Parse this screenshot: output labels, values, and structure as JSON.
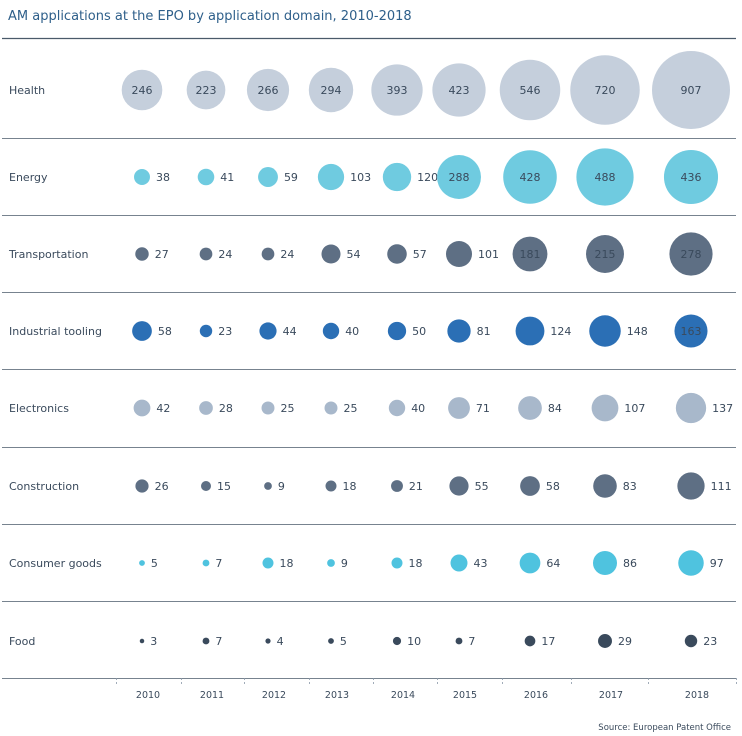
{
  "chart_data": {
    "type": "bubble",
    "title": "AM applications at the EPO by application domain, 2010-2018",
    "source": "Source: European Patent Office",
    "x": [
      "2010",
      "2011",
      "2012",
      "2013",
      "2014",
      "2015",
      "2016",
      "2017",
      "2018"
    ],
    "series": [
      {
        "name": "Health",
        "color": "#c5cfdc",
        "values": [
          246,
          223,
          266,
          294,
          393,
          423,
          546,
          720,
          907
        ]
      },
      {
        "name": "Energy",
        "color": "#6fcbe0",
        "values": [
          38,
          41,
          59,
          103,
          120,
          288,
          428,
          488,
          436
        ]
      },
      {
        "name": "Transportation",
        "color": "#5e6f84",
        "values": [
          27,
          24,
          24,
          54,
          57,
          101,
          181,
          215,
          278
        ]
      },
      {
        "name": "Industrial tooling",
        "color": "#2b6fb5",
        "values": [
          58,
          23,
          44,
          40,
          50,
          81,
          124,
          148,
          163
        ]
      },
      {
        "name": "Electronics",
        "color": "#a8b8cb",
        "values": [
          42,
          28,
          25,
          25,
          40,
          71,
          84,
          107,
          137
        ]
      },
      {
        "name": "Construction",
        "color": "#5e6f84",
        "values": [
          26,
          15,
          9,
          18,
          21,
          55,
          58,
          83,
          111
        ]
      },
      {
        "name": "Consumer goods",
        "color": "#4fc3df",
        "values": [
          5,
          7,
          18,
          9,
          18,
          43,
          64,
          86,
          97
        ]
      },
      {
        "name": "Food",
        "color": "#3a4a5c",
        "values": [
          3,
          7,
          4,
          5,
          10,
          7,
          17,
          29,
          23
        ]
      }
    ]
  }
}
